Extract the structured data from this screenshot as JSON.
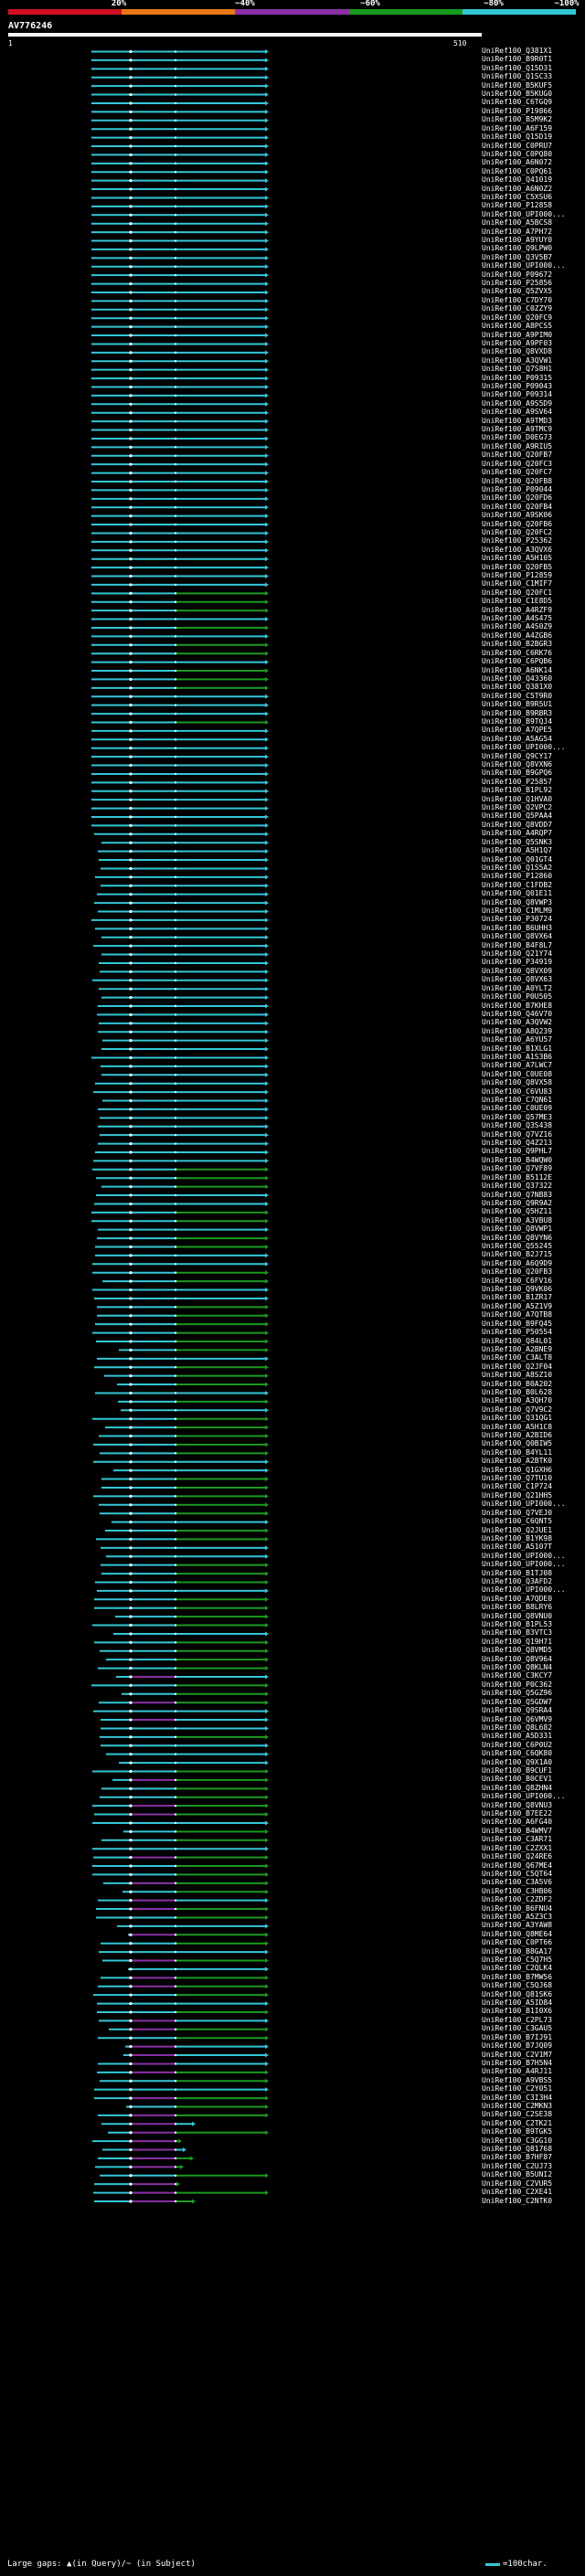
{
  "header": {
    "pct_labels": [
      "20%",
      "~40%",
      "~60%",
      "~80%",
      "~100%"
    ],
    "colors": [
      "#d01020",
      "#e87818",
      "#8a2fa6",
      "#1a9a20",
      "#33c7d6"
    ],
    "query_name": "AV776246",
    "scale_start": "1",
    "scale_end": "510"
  },
  "hits": [
    "UniRef100_Q381X1",
    "UniRef100_B9R0T1",
    "UniRef100_Q15D31",
    "UniRef100_Q1SC33",
    "UniRef100_B5KUF5",
    "UniRef100_B5KUG0",
    "UniRef100_C6TGQ9",
    "UniRef100_P19866",
    "UniRef100_B5M9K2",
    "UniRef100_A6F159",
    "UniRef100_Q15D19",
    "UniRef100_C0PRU7",
    "UniRef100_C0PQ80",
    "UniRef100_A6N072",
    "UniRef100_C0PQ61",
    "UniRef100_Q41019",
    "UniRef100_A6N0Z2",
    "UniRef100_C5XSU6",
    "UniRef100_P12858",
    "UniRef100_UPI000...",
    "UniRef100_A5BCS8",
    "UniRef100_A7PH72",
    "UniRef100_A9YUY0",
    "UniRef100_Q9LPW0",
    "UniRef100_Q3V5B7",
    "UniRef100_UPI000...",
    "UniRef100_P09672",
    "UniRef100_P25856",
    "UniRef100_Q5ZVX5",
    "UniRef100_C7DY70",
    "UniRef100_C0ZZY9",
    "UniRef100_Q20FC9",
    "UniRef100_A8PCS5",
    "UniRef100_A9PIM0",
    "UniRef100_A9PF03",
    "UniRef100_Q8VXD8",
    "UniRef100_A3QVW1",
    "UniRef100_Q7S8H1",
    "UniRef100_P09315",
    "UniRef100_P09043",
    "UniRef100_P09314",
    "UniRef100_A9S5D9",
    "UniRef100_A9SV64",
    "UniRef100_A9TMD3",
    "UniRef100_A9TMC9",
    "UniRef100_D0EG73",
    "UniRef100_A9RIU5",
    "UniRef100_Q20FB7",
    "UniRef100_Q20FC3",
    "UniRef100_Q20FC7",
    "UniRef100_Q20FB8",
    "UniRef100_P09044",
    "UniRef100_Q20FD6",
    "UniRef100_Q20FB4",
    "UniRef100_A9SK06",
    "UniRef100_Q20FB6",
    "UniRef100_Q20FC2",
    "UniRef100_P25362",
    "UniRef100_A3QVX6",
    "UniRef100_A5H105",
    "UniRef100_Q20FB5",
    "UniRef100_P12859",
    "UniRef100_C1MIF7",
    "UniRef100_Q20FC1",
    "UniRef100_C1E8D5",
    "UniRef100_A4RZF9",
    "UniRef100_A4S475",
    "UniRef100_A4S0Z9",
    "UniRef100_A4ZGB6",
    "UniRef100_B2BGR3",
    "UniRef100_C6RK76",
    "UniRef100_C6PQB6",
    "UniRef100_A6NK14",
    "UniRef100_Q43360",
    "UniRef100_Q381X0",
    "UniRef100_C5T9R0",
    "UniRef100_B9R5U1",
    "UniRef100_B9RBR3",
    "UniRef100_B9TQJ4",
    "UniRef100_A7QPE5",
    "UniRef100_A5AG54",
    "UniRef100_UPI000...",
    "UniRef100_Q9CY17",
    "UniRef100_Q8VXN6",
    "UniRef100_B9GPQ6",
    "UniRef100_P25857",
    "UniRef100_B1PL92",
    "UniRef100_Q1HVA0",
    "UniRef100_Q2VPC2",
    "UniRef100_Q5PAA4",
    "UniRef100_Q8VDD7",
    "UniRef100_A4RQP7",
    "UniRef100_Q5SNK3",
    "UniRef100_A5H1Q7",
    "UniRef100_Q01GT4",
    "UniRef100_Q1S5A2",
    "UniRef100_P12860",
    "UniRef100_C1FDB2",
    "UniRef100_Q01E11",
    "UniRef100_Q8VWP3",
    "UniRef100_C1MLM9",
    "UniRef100_P30724",
    "UniRef100_B6UHH3",
    "UniRef100_Q8VX64",
    "UniRef100_B4F8L7",
    "UniRef100_Q21Y74",
    "UniRef100_P34919",
    "UniRef100_Q8VX09",
    "UniRef100_Q8VX63",
    "UniRef100_A0YLT2",
    "UniRef100_P0U505",
    "UniRef100_B7KHE8",
    "UniRef100_Q46V70",
    "UniRef100_A3QVW2",
    "UniRef100_A8Q239",
    "UniRef100_A6YU57",
    "UniRef100_B1XLG1",
    "UniRef100_A1S3B6",
    "UniRef100_A7LWC7",
    "UniRef100_C0UE08",
    "UniRef100_Q8VX58",
    "UniRef100_C6VU83",
    "UniRef100_C7QN61",
    "UniRef100_C0UE09",
    "UniRef100_Q57ME3",
    "UniRef100_Q3S438",
    "UniRef100_Q7VZ16",
    "UniRef100_Q4Z213",
    "UniRef100_Q9PHL7",
    "UniRef100_B4WQW0",
    "UniRef100_Q7VF89",
    "UniRef100_B5112E",
    "UniRef100_Q37322",
    "UniRef100_Q7NB83",
    "UniRef100_Q9R9A2",
    "UniRef100_Q5HZ11",
    "UniRef100_A3VBU8",
    "UniRef100_Q8VWP1",
    "UniRef100_Q8VYN6",
    "UniRef100_Q55245",
    "UniRef100_B2J715",
    "UniRef100_A6Q9D9",
    "UniRef100_Q20FB3",
    "UniRef100_C6FV16",
    "UniRef100_Q9VK06",
    "UniRef100_B1ZR17",
    "UniRef100_A5Z1V9",
    "UniRef100_A7QTB8",
    "UniRef100_B9FQ45",
    "UniRef100_P50554",
    "UniRef100_Q84L01",
    "UniRef100_A2BNE9",
    "UniRef100_C3ALT8",
    "UniRef100_Q2JF04",
    "UniRef100_A8SZ10",
    "UniRef100_B0A202",
    "UniRef100_B0L628",
    "UniRef100_A3QH70",
    "UniRef100_Q7V9C2",
    "UniRef100_Q31QG1",
    "UniRef100_A5H1C8",
    "UniRef100_A2BID6",
    "UniRef100_Q0BIW5",
    "UniRef100_B4YL11",
    "UniRef100_A2BTK0",
    "UniRef100_Q1GXH6",
    "UniRef100_Q7TU10",
    "UniRef100_C1P724",
    "UniRef100_Q21HH5",
    "UniRef100_UPI000...",
    "UniRef100_Q7VEJ0",
    "UniRef100_C6QNT5",
    "UniRef100_Q2JUE1",
    "UniRef100_B1YK98",
    "UniRef100_A5107T",
    "UniRef100_UPI000...",
    "UniRef100_UPI000...",
    "UniRef100_B1TJ08",
    "UniRef100_Q3AFD2",
    "UniRef100_UPI000...",
    "UniRef100_A7QDE0",
    "UniRef100_B8LRY6",
    "UniRef100_Q8VNU0",
    "UniRef100_B1PL53",
    "UniRef100_B3VTC3",
    "UniRef100_Q19H71",
    "UniRef100_Q8VMD5",
    "UniRef100_Q8V964",
    "UniRef100_Q8KLN4",
    "UniRef100_C3KCY7",
    "UniRef100_P0C362",
    "UniRef100_Q5GZ96",
    "UniRef100_Q5GDW7",
    "UniRef100_Q9SRA4",
    "UniRef100_Q6VMV9",
    "UniRef100_Q8L682",
    "UniRef100_A5D331",
    "UniRef100_C6P0U2",
    "UniRef100_C6QK80",
    "UniRef100_Q9X1A0",
    "UniRef100_B9CUF1",
    "UniRef100_B0CEV1",
    "UniRef100_Q8ZHN4",
    "UniRef100_UPI000...",
    "UniRef100_Q8VNU3",
    "UniRef100_B7EE22",
    "UniRef100_A6FG40",
    "UniRef100_B4WMV7",
    "UniRef100_C3AR71",
    "UniRef100_C2ZXX1",
    "UniRef100_Q24RE6",
    "UniRef100_Q67ME4",
    "UniRef100_C5QT64",
    "UniRef100_C3A5V6",
    "UniRef100_C3HB06",
    "UniRef100_C2ZDF2",
    "UniRef100_B6FNU4",
    "UniRef100_A5Z3C3",
    "UniRef100_A3YAW8",
    "UniRef100_Q8ME64",
    "UniRef100_C0PT66",
    "UniRef100_B8GA17",
    "UniRef100_C5Q7H5",
    "UniRef100_C2QLK4",
    "UniRef100_B7MW56",
    "UniRef100_C5QJ68",
    "UniRef100_Q81SK6",
    "UniRef100_A5ID84",
    "UniRef100_B1I0X6",
    "UniRef100_C2PL73",
    "UniRef100_C3GAU5",
    "UniRef100_B7IJ91",
    "UniRef100_B7JQ09",
    "UniRef100_C2V1M7",
    "UniRef100_B7H5N4",
    "UniRef100_A4RJ11",
    "UniRef100_A9VBS5",
    "UniRef100_C2Y051",
    "UniRef100_C3I3H4",
    "UniRef100_C2MKN3",
    "UniRef100_C2SE38",
    "UniRef100_C2TK21",
    "UniRef100_B9TGK5",
    "UniRef100_C3GG10",
    "UniRef100_Q81768",
    "UniRef100_B7HF87",
    "UniRef100_C2UJ73",
    "UniRef100_B5UNI2",
    "UniRef100_C2VUR5",
    "UniRef100_C2XE41",
    "UniRef100_C2NTK0"
  ],
  "footer": {
    "large_gaps": "Large gaps: ▲(in Query)/~ (in Subject)",
    "scale_note": "=100char."
  }
}
